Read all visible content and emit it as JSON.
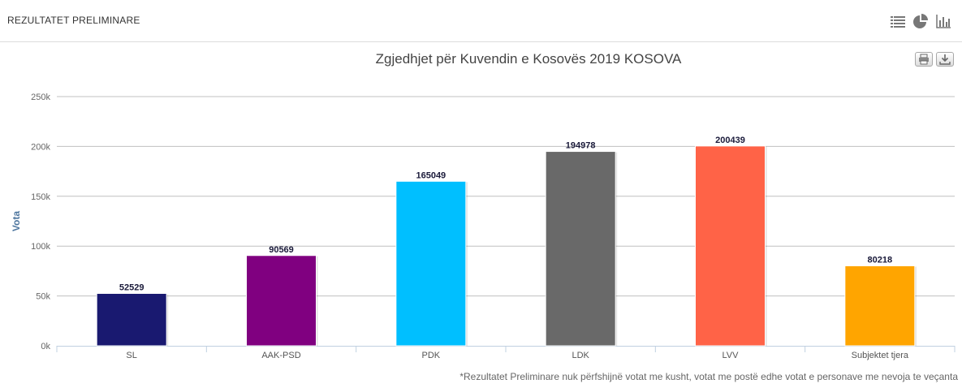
{
  "header": {
    "title": "REZULTATET PRELIMINARE",
    "icons": [
      "list-icon",
      "pie-chart-icon",
      "bar-chart-icon"
    ]
  },
  "chart_tools": {
    "icons": [
      "print-icon",
      "download-icon"
    ]
  },
  "footnote": "*Rezultatet Preliminare nuk përfshijnë votat me kusht, votat me postë edhe votat e personave me nevoja te veçanta",
  "chart_data": {
    "type": "bar",
    "title": "Zgjedhjet për Kuvendin e Kosovës 2019 KOSOVA",
    "xlabel": "",
    "ylabel": "Vota",
    "ylim": [
      0,
      250000
    ],
    "yticks": [
      0,
      50000,
      100000,
      150000,
      200000,
      250000
    ],
    "ytick_labels": [
      "0k",
      "50k",
      "100k",
      "150k",
      "200k",
      "250k"
    ],
    "grid": true,
    "categories": [
      "SL",
      "AAK-PSD",
      "PDK",
      "LDK",
      "LVV",
      "Subjektet tjera"
    ],
    "values": [
      52529,
      90569,
      165049,
      194978,
      200439,
      80218
    ],
    "colors": [
      "#191970",
      "#800080",
      "#00bfff",
      "#696969",
      "#ff6347",
      "#ffa500"
    ]
  }
}
